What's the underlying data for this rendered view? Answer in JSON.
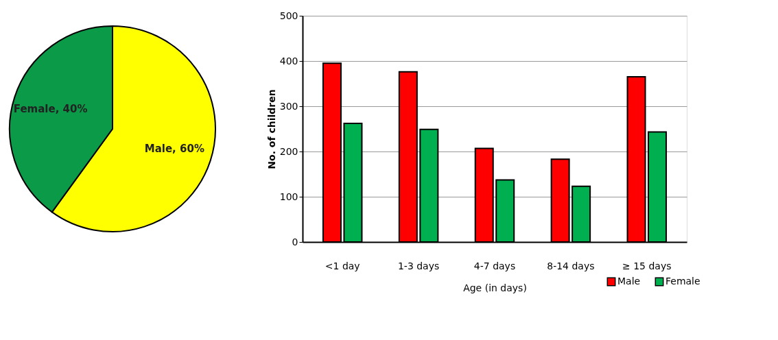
{
  "chart_data": [
    {
      "type": "pie",
      "categories": [
        "Male",
        "Female"
      ],
      "values": [
        60,
        40
      ],
      "colors": [
        "#ffff00",
        "#0a9a48"
      ],
      "value_labels": [
        "60%",
        "40%"
      ]
    },
    {
      "type": "bar",
      "categories": [
        "<1 day",
        "1-3 days",
        "4-7 days",
        "8-14 days",
        "≥ 15 days"
      ],
      "xlabel": "Age (in days)",
      "ylabel": "No. of children",
      "ylim": [
        0,
        500
      ],
      "yticks": [
        0,
        100,
        200,
        300,
        400,
        500
      ],
      "grid": "y",
      "legend": "bottom right",
      "series": [
        {
          "name": "Male",
          "color": "#ff0000",
          "values": [
            395,
            376,
            207,
            183,
            365
          ]
        },
        {
          "name": "Female",
          "color": "#00b050",
          "values": [
            262,
            249,
            137,
            123,
            243
          ]
        }
      ]
    }
  ]
}
